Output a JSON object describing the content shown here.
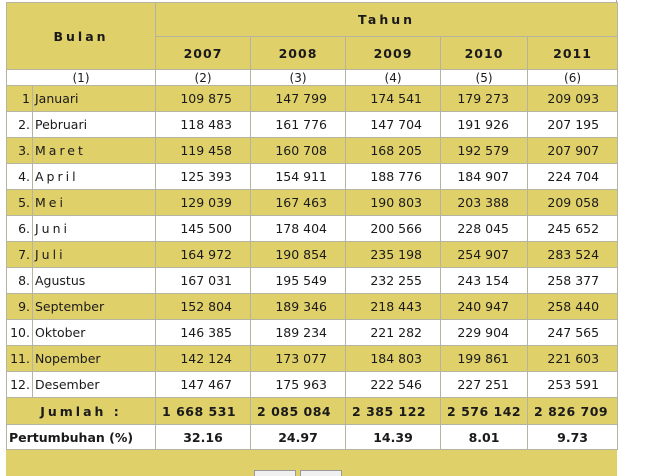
{
  "header": {
    "bulan_label": "Bulan",
    "tahun_label": "Tahun",
    "years": [
      "2007",
      "2008",
      "2009",
      "2010",
      "2011"
    ],
    "col_numbers": [
      "(1)",
      "(2)",
      "(3)",
      "(4)",
      "(5)",
      "(6)"
    ]
  },
  "rows": [
    {
      "idx": "1",
      "month": "Januari",
      "spaced": false,
      "values": [
        "109 875",
        "147 799",
        "174 541",
        "179 273",
        "209 093"
      ]
    },
    {
      "idx": "2.",
      "month": "Pebruari",
      "spaced": false,
      "values": [
        "118 483",
        "161 776",
        "147 704",
        "191 926",
        "207 195"
      ]
    },
    {
      "idx": "3.",
      "month": "Maret",
      "spaced": true,
      "values": [
        "119 458",
        "160 708",
        "168 205",
        "192 579",
        "207 907"
      ]
    },
    {
      "idx": "4.",
      "month": "April",
      "spaced": true,
      "values": [
        "125 393",
        "154 911",
        "188 776",
        "184 907",
        "224 704"
      ]
    },
    {
      "idx": "5.",
      "month": "Mei",
      "spaced": true,
      "values": [
        "129 039",
        "167 463",
        "190 803",
        "203 388",
        "209 058"
      ]
    },
    {
      "idx": "6.",
      "month": "Juni",
      "spaced": true,
      "values": [
        "145 500",
        "178 404",
        "200 566",
        "228 045",
        "245 652"
      ]
    },
    {
      "idx": "7.",
      "month": "Juli",
      "spaced": true,
      "values": [
        "164 972",
        "190 854",
        "235 198",
        "254 907",
        "283 524"
      ]
    },
    {
      "idx": "8.",
      "month": "Agustus",
      "spaced": false,
      "values": [
        "167 031",
        "195 549",
        "232 255",
        "243 154",
        "258 377"
      ]
    },
    {
      "idx": "9.",
      "month": "September",
      "spaced": false,
      "values": [
        "152 804",
        "189 346",
        "218 443",
        "240 947",
        "258 440"
      ]
    },
    {
      "idx": "10.",
      "month": "Oktober",
      "spaced": false,
      "values": [
        "146 385",
        "189 234",
        "221 282",
        "229 904",
        "247 565"
      ]
    },
    {
      "idx": "11.",
      "month": "Nopember",
      "spaced": false,
      "values": [
        "142 124",
        "173 077",
        "184 803",
        "199 861",
        "221 603"
      ]
    },
    {
      "idx": "12.",
      "month": "Desember",
      "spaced": false,
      "values": [
        "147 467",
        "175 963",
        "222 546",
        "227 251",
        "253 591"
      ]
    }
  ],
  "total": {
    "label": "Jumlah :",
    "values": [
      "1 668 531",
      "2 085 084",
      "2 385 122",
      "2 576 142",
      "2 826 709"
    ]
  },
  "growth": {
    "label": "Pertumbuhan (%)",
    "values": [
      "32.16",
      "24.97",
      "14.39",
      "8.01",
      "9.73"
    ]
  },
  "colors": {
    "band": "#e0d06a",
    "plain": "#ffffff",
    "border": "#b4b4a0"
  }
}
